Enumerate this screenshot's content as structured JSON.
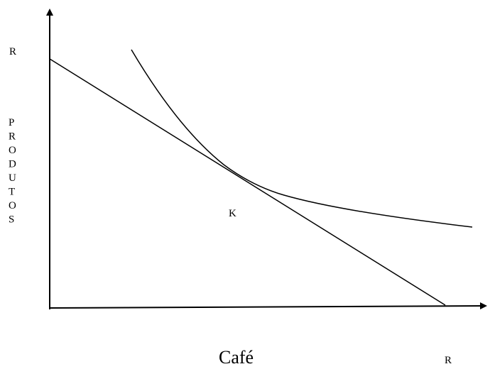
{
  "y_axis_top_label": "R",
  "y_axis_label": "PRODUTOS",
  "point_label": "K",
  "x_axis_label": "Café",
  "x_axis_end_label": "R"
}
